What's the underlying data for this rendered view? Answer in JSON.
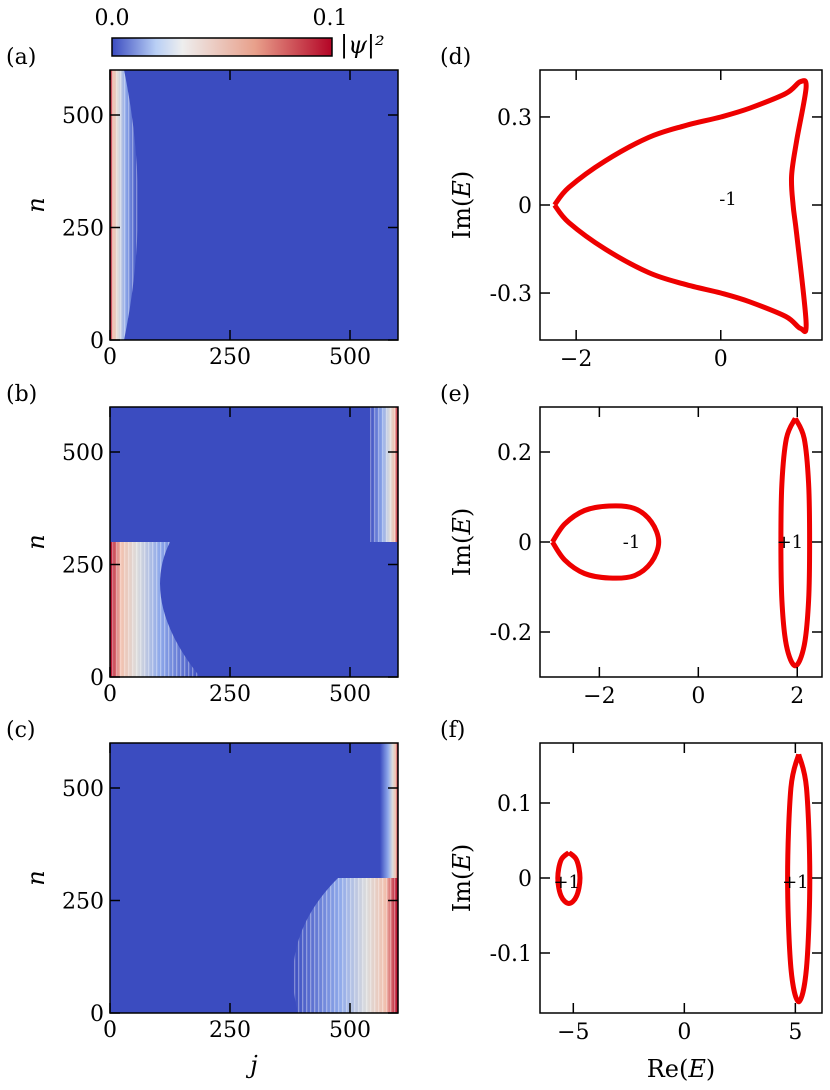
{
  "colorbar": {
    "min_label": "0.0",
    "max_label": "0.1",
    "label": "|ψ|²",
    "colormap": [
      "#3b4cc0",
      "#b9cff5",
      "#eeeeee",
      "#e8a08b",
      "#b40426"
    ]
  },
  "colors": {
    "heatmap_bg": "#3b4cc0",
    "edge_red": "#b40426",
    "curve": "#ee0000"
  },
  "chart_data": [
    {
      "panel": "(a)",
      "type": "heatmap",
      "xlabel": "",
      "ylabel": "n",
      "xlim": [
        0,
        600
      ],
      "ylim": [
        0,
        600
      ],
      "xticks": [
        0,
        250,
        500
      ],
      "yticks": [
        0,
        250,
        500
      ],
      "localization": "left edge (j≈0) for all n"
    },
    {
      "panel": "(b)",
      "type": "heatmap",
      "xlabel": "",
      "ylabel": "n",
      "xlim": [
        0,
        600
      ],
      "ylim": [
        0,
        600
      ],
      "xticks": [
        0,
        250,
        500
      ],
      "yticks": [
        0,
        250,
        500
      ],
      "localization": "left edge for n<300, right edge for n>300"
    },
    {
      "panel": "(c)",
      "type": "heatmap",
      "xlabel": "j",
      "ylabel": "n",
      "xlim": [
        0,
        600
      ],
      "ylim": [
        0,
        600
      ],
      "xticks": [
        0,
        250,
        500
      ],
      "yticks": [
        0,
        250,
        500
      ],
      "localization": "right edge (j≈600) for all n"
    },
    {
      "panel": "(d)",
      "type": "line",
      "xlabel": "",
      "ylabel": "Im(E)",
      "xlim": [
        -2.5,
        1.4
      ],
      "ylim": [
        -0.46,
        0.46
      ],
      "xticks": [
        -2,
        0
      ],
      "xtick_labels": [
        "−2",
        "0"
      ],
      "yticks": [
        0.3,
        0,
        -0.3
      ],
      "ytick_labels": [
        "0.3",
        "0",
        "-0.3"
      ],
      "annotations": [
        {
          "text": "-1",
          "x": 0.1,
          "y": 0.02
        }
      ],
      "series": [
        {
          "x": [
            -2.3,
            -2.1,
            -1.6,
            -1.0,
            -0.5,
            0.0,
            0.4,
            0.9,
            1.1,
            1.18,
            1.05,
            0.98,
            1.0,
            1.05,
            1.18,
            1.1,
            0.9,
            0.4,
            0.0,
            -0.5,
            -1.0,
            -1.6,
            -2.1,
            -2.3
          ],
          "y": [
            0.0,
            0.06,
            0.15,
            0.23,
            0.27,
            0.3,
            0.33,
            0.38,
            0.42,
            0.4,
            0.22,
            0.1,
            0.0,
            -0.1,
            -0.4,
            -0.42,
            -0.38,
            -0.33,
            -0.3,
            -0.27,
            -0.23,
            -0.15,
            -0.06,
            0.0
          ]
        }
      ]
    },
    {
      "panel": "(e)",
      "type": "line",
      "xlabel": "",
      "ylabel": "Im(E)",
      "xlim": [
        -3.2,
        2.5
      ],
      "ylim": [
        -0.3,
        0.3
      ],
      "xticks": [
        -2,
        0,
        2
      ],
      "xtick_labels": [
        "−2",
        "0",
        "2"
      ],
      "yticks": [
        0.2,
        0,
        -0.2
      ],
      "ytick_labels": [
        "0.2",
        "0",
        "-0.2"
      ],
      "annotations": [
        {
          "text": "-1",
          "x": -1.35,
          "y": 0.0
        },
        {
          "text": "+1",
          "x": 1.85,
          "y": 0.0
        }
      ],
      "series": [
        {
          "x": [
            -2.95,
            -2.7,
            -2.3,
            -1.8,
            -1.3,
            -0.95,
            -0.8,
            -0.95,
            -1.3,
            -1.8,
            -2.3,
            -2.7,
            -2.95
          ],
          "y": [
            0.0,
            0.04,
            0.07,
            0.08,
            0.075,
            0.045,
            0.0,
            -0.045,
            -0.075,
            -0.08,
            -0.07,
            -0.04,
            0.0
          ]
        },
        {
          "x": [
            1.96,
            2.14,
            2.23,
            2.25,
            2.23,
            2.14,
            1.96,
            1.78,
            1.69,
            1.67,
            1.69,
            1.78,
            1.96
          ],
          "y": [
            0.275,
            0.23,
            0.13,
            0.0,
            -0.13,
            -0.23,
            -0.275,
            -0.23,
            -0.13,
            0.0,
            0.13,
            0.23,
            0.275
          ]
        }
      ]
    },
    {
      "panel": "(f)",
      "type": "line",
      "xlabel": "Re(E)",
      "ylabel": "Im(E)",
      "xlim": [
        -6.5,
        6.2
      ],
      "ylim": [
        -0.18,
        0.18
      ],
      "xticks": [
        -5,
        0,
        5
      ],
      "xtick_labels": [
        "−5",
        "0",
        "5"
      ],
      "yticks": [
        0.1,
        0,
        -0.1
      ],
      "ytick_labels": [
        "0.1",
        "0",
        "-0.1"
      ],
      "annotations": [
        {
          "text": "+1",
          "x": -5.3,
          "y": -0.005
        },
        {
          "text": "+1",
          "x": 5.0,
          "y": -0.005
        }
      ],
      "series": [
        {
          "x": [
            -5.2,
            -4.85,
            -4.7,
            -4.85,
            -5.2,
            -5.55,
            -5.7,
            -5.55,
            -5.2
          ],
          "y": [
            0.034,
            0.024,
            0.0,
            -0.024,
            -0.034,
            -0.024,
            0.0,
            0.024,
            0.034
          ]
        },
        {
          "x": [
            5.15,
            5.5,
            5.65,
            5.5,
            5.15,
            4.8,
            4.65,
            4.8,
            5.15
          ],
          "y": [
            0.165,
            0.12,
            0.0,
            -0.12,
            -0.165,
            -0.12,
            0.0,
            0.12,
            0.165
          ]
        }
      ]
    }
  ]
}
